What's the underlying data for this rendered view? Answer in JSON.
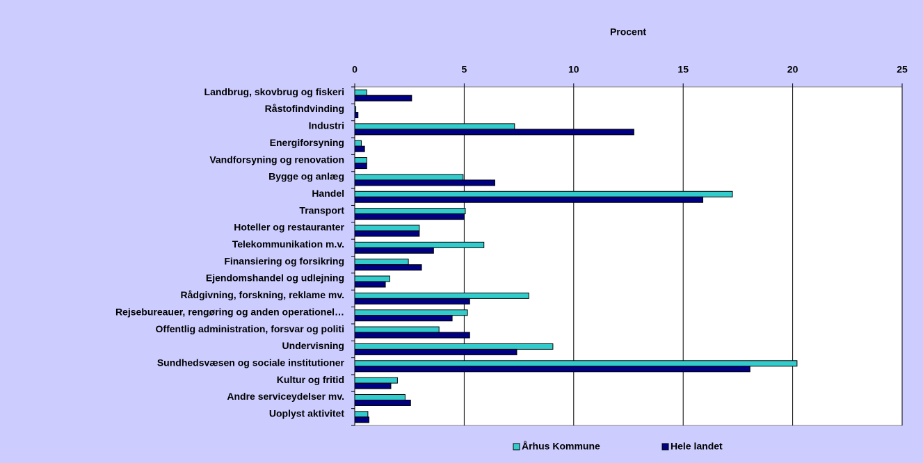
{
  "chart_data": {
    "type": "bar",
    "orientation": "horizontal",
    "xlabel": "Procent",
    "categories": [
      "Landbrug, skovbrug og fiskeri",
      "Råstofindvinding",
      "Industri",
      "Energiforsyning",
      "Vandforsyning og renovation",
      "Bygge og anlæg",
      "Handel",
      "Transport",
      "Hoteller og restauranter",
      "Telekommunikation m.v.",
      "Finansiering og forsikring",
      "Ejendomshandel og udlejning",
      "Rådgivning, forskning, reklame mv.",
      "Rejsebureauer, rengøring og anden operationel…",
      "Offentlig administration, forsvar og politi",
      "Undervisning",
      "Sundhedsvæsen og sociale institutioner",
      "Kultur og fritid",
      "Andre serviceydelser mv.",
      "Uoplyst aktivitet"
    ],
    "series": [
      {
        "name": "Århus Kommune",
        "color": "#33cccc",
        "values": [
          0.55,
          0.05,
          7.3,
          0.3,
          0.55,
          4.95,
          17.25,
          5.05,
          2.95,
          5.9,
          2.45,
          1.6,
          7.95,
          5.15,
          3.85,
          9.05,
          20.2,
          1.95,
          2.3,
          0.6
        ]
      },
      {
        "name": "Hele landet",
        "color": "#000080",
        "values": [
          2.6,
          0.15,
          12.75,
          0.45,
          0.55,
          6.4,
          15.9,
          5.0,
          2.95,
          3.6,
          3.05,
          1.4,
          5.25,
          4.45,
          5.25,
          7.4,
          18.05,
          1.65,
          2.55,
          0.65
        ]
      }
    ],
    "xlim": [
      0,
      25
    ],
    "xticks": [
      0,
      5,
      10,
      15,
      20,
      25
    ],
    "grid": true,
    "legend": "bottom"
  }
}
